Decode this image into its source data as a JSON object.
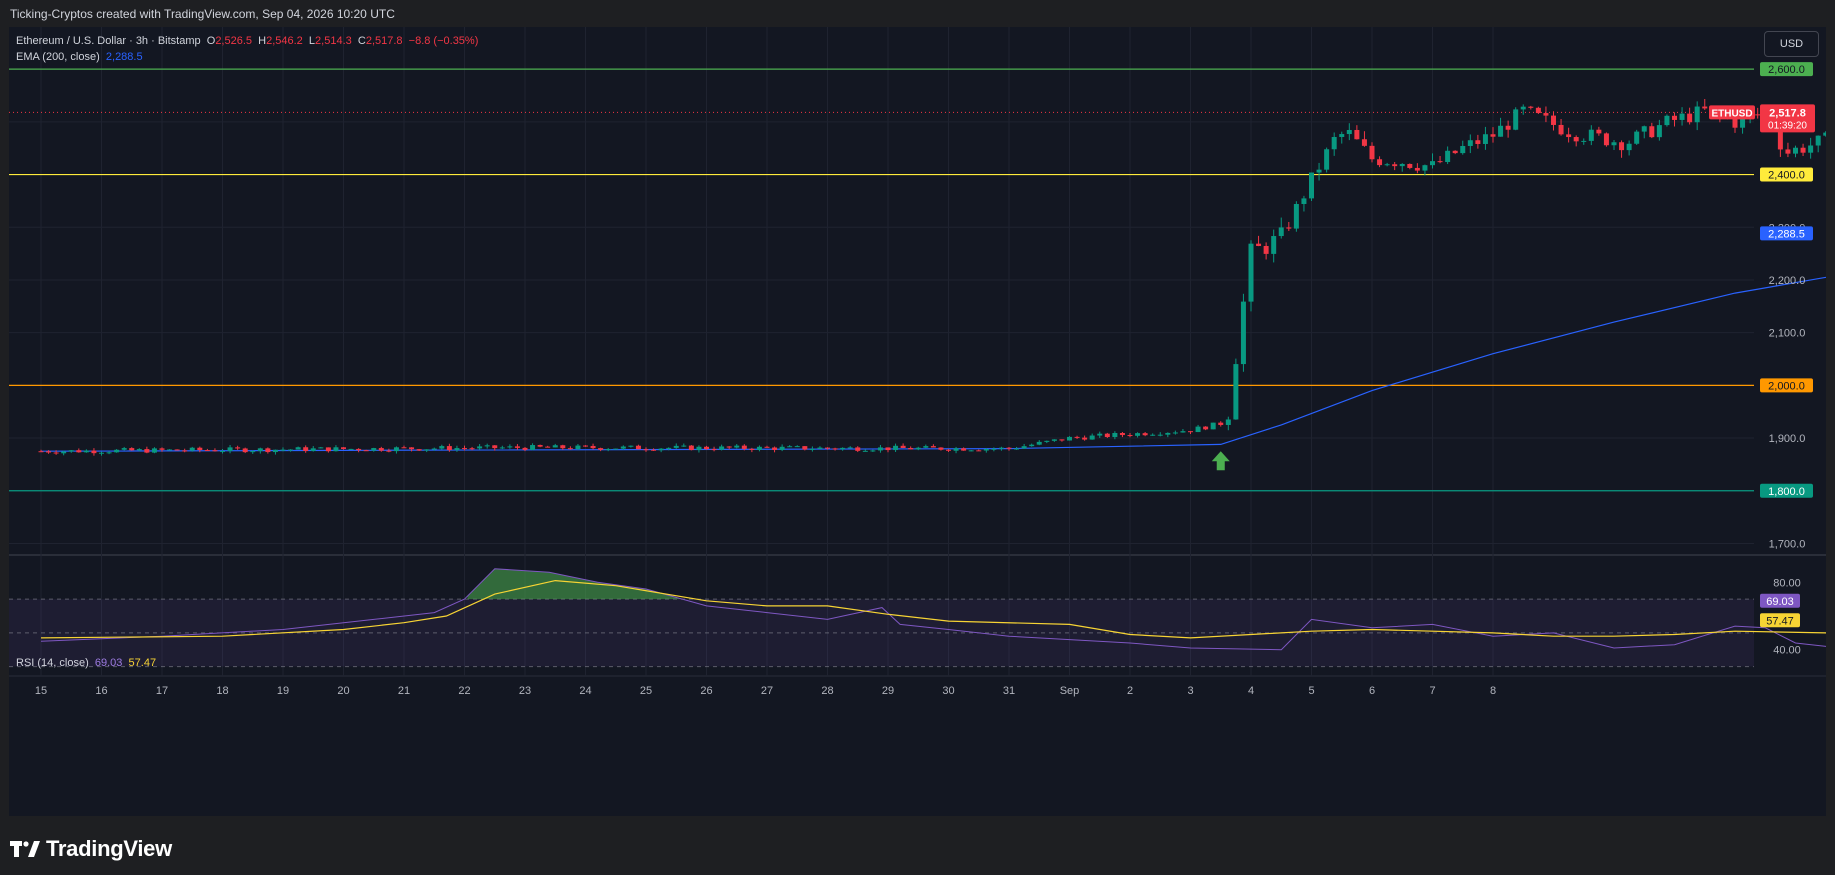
{
  "header": {
    "title": "Ticking-Cryptos created with TradingView.com, Sep 04, 2026 10:20 UTC"
  },
  "legend": {
    "symbol": "Ethereum / U.S. Dollar · 3h · Bitstamp",
    "o_label": "O",
    "o_value": "2,526.5",
    "h_label": "H",
    "h_value": "2,546.2",
    "l_label": "L",
    "l_value": "2,514.3",
    "c_label": "C",
    "c_value": "2,517.8",
    "change": "−8.8 (−0.35%)",
    "ema_label": "EMA (200, close)",
    "ema_value": "2,288.5",
    "rsi_label": "RSI (14, close)",
    "rsi_value": "69.03",
    "rsi_ma_value": "57.47"
  },
  "currency_button": "USD",
  "footer": {
    "brand": "TradingView"
  },
  "colors": {
    "up": "#089981",
    "down": "#f23645",
    "ema": "#2962ff",
    "level_2600": "#4caf50",
    "level_2400": "#ffeb3b",
    "level_2000": "#ff9800",
    "level_1800": "#089981",
    "rsi": "#7e57c2",
    "rsi_ma": "#f7d434"
  },
  "chart_data": {
    "type": "candlestick",
    "symbol": "ETHUSD",
    "last_price": "2,517.8",
    "countdown": "01:39:20",
    "ylim": [
      1680,
      2680
    ],
    "y_ticks": [
      1700,
      1900,
      2100,
      2200,
      2300
    ],
    "y_tick_labels": [
      "1,700.0",
      "1,900.0",
      "2,100.0",
      "2,200.0",
      "2,300.0"
    ],
    "horizontal_levels": [
      {
        "value": 2600,
        "label": "2,600.0"
      },
      {
        "value": 2400,
        "label": "2,400.0"
      },
      {
        "value": 2000,
        "label": "2,000.0"
      },
      {
        "value": 1800,
        "label": "1,800.0"
      }
    ],
    "ema_label": "2,288.5",
    "x_ticks": [
      "15",
      "16",
      "17",
      "18",
      "19",
      "20",
      "21",
      "22",
      "23",
      "24",
      "25",
      "26",
      "27",
      "28",
      "29",
      "30",
      "31",
      "Sep",
      "2",
      "3",
      "4",
      "5",
      "6",
      "7",
      "8"
    ],
    "candle_path": [
      [
        0,
        1875
      ],
      [
        8,
        1882
      ],
      [
        16,
        1880
      ],
      [
        17,
        1900
      ],
      [
        19,
        1915
      ],
      [
        19.6,
        1930
      ],
      [
        19.8,
        2100
      ],
      [
        20,
        2250
      ],
      [
        20.5,
        2280
      ],
      [
        21,
        2390
      ],
      [
        21.4,
        2470
      ],
      [
        21.6,
        2480
      ],
      [
        22,
        2430
      ],
      [
        22.5,
        2425
      ],
      [
        23,
        2415
      ],
      [
        23.5,
        2450
      ],
      [
        24,
        2475
      ],
      [
        24.5,
        2520
      ],
      [
        25.3,
        2480
      ],
      [
        26.2,
        2460
      ],
      [
        26.9,
        2500
      ],
      [
        27.5,
        2520
      ],
      [
        28,
        2500
      ],
      [
        28.6,
        2520
      ],
      [
        28.8,
        2440
      ],
      [
        29.5,
        2465
      ],
      [
        30.5,
        2485
      ],
      [
        30.9,
        2505
      ],
      [
        31,
        2420
      ],
      [
        31.5,
        2460
      ],
      [
        32,
        2475
      ],
      [
        32.4,
        2475
      ],
      [
        33,
        2420
      ],
      [
        34,
        2400
      ],
      [
        34.5,
        2400
      ],
      [
        35,
        2500
      ],
      [
        35.5,
        2520
      ],
      [
        35.6,
        2518
      ]
    ],
    "ema_path": [
      [
        0,
        1875
      ],
      [
        16,
        1880
      ],
      [
        19.5,
        1888
      ],
      [
        20.5,
        1925
      ],
      [
        22,
        1990
      ],
      [
        24,
        2060
      ],
      [
        26,
        2120
      ],
      [
        28,
        2175
      ],
      [
        30,
        2215
      ],
      [
        31,
        2238
      ],
      [
        32,
        2255
      ],
      [
        33,
        2267
      ],
      [
        34,
        2276
      ],
      [
        35,
        2285
      ],
      [
        35.6,
        2288.5
      ]
    ],
    "rsi": {
      "ylim": [
        25,
        95
      ],
      "overbought": 70,
      "middle": 50,
      "oversold": 30,
      "y_tick_labels": [
        "80.00",
        "40.00"
      ],
      "last": 69.03,
      "ma_last": 57.47,
      "rsi_path": [
        [
          0,
          45
        ],
        [
          2,
          48
        ],
        [
          4,
          52
        ],
        [
          5.5,
          58
        ],
        [
          6.5,
          62
        ],
        [
          7,
          70
        ],
        [
          7.5,
          88
        ],
        [
          8.4,
          86
        ],
        [
          9.2,
          80
        ],
        [
          10,
          76
        ],
        [
          11,
          66
        ],
        [
          12,
          62
        ],
        [
          13,
          58
        ],
        [
          13.9,
          65
        ],
        [
          14.2,
          55
        ],
        [
          15,
          52
        ],
        [
          16,
          48
        ],
        [
          17,
          46
        ],
        [
          18,
          44
        ],
        [
          19,
          41
        ],
        [
          20.5,
          40
        ],
        [
          21,
          58
        ],
        [
          22,
          53
        ],
        [
          23,
          55
        ],
        [
          24,
          48
        ],
        [
          25,
          50
        ],
        [
          26,
          41
        ],
        [
          27,
          43
        ],
        [
          28,
          54
        ],
        [
          28.5,
          53
        ],
        [
          29,
          44
        ],
        [
          30,
          40
        ],
        [
          31.5,
          41
        ],
        [
          32,
          68
        ],
        [
          33,
          70
        ],
        [
          33.5,
          68
        ],
        [
          34,
          71
        ],
        [
          34.3,
          69.03
        ]
      ],
      "ma_path": [
        [
          0,
          47
        ],
        [
          3,
          48
        ],
        [
          5,
          52
        ],
        [
          6,
          56
        ],
        [
          6.7,
          60
        ],
        [
          7.5,
          73
        ],
        [
          8.5,
          81
        ],
        [
          9.5,
          78
        ],
        [
          11,
          69
        ],
        [
          12,
          66
        ],
        [
          13,
          66
        ],
        [
          14,
          61
        ],
        [
          15,
          57
        ],
        [
          17,
          55
        ],
        [
          18,
          49
        ],
        [
          19,
          47
        ],
        [
          20,
          49
        ],
        [
          21,
          51
        ],
        [
          22,
          52
        ],
        [
          24,
          50
        ],
        [
          25,
          48
        ],
        [
          26,
          48
        ],
        [
          27,
          49
        ],
        [
          28,
          51
        ],
        [
          29.5,
          50
        ],
        [
          31,
          46
        ],
        [
          32,
          45
        ],
        [
          33,
          52
        ],
        [
          34.3,
          57.47
        ]
      ]
    }
  }
}
